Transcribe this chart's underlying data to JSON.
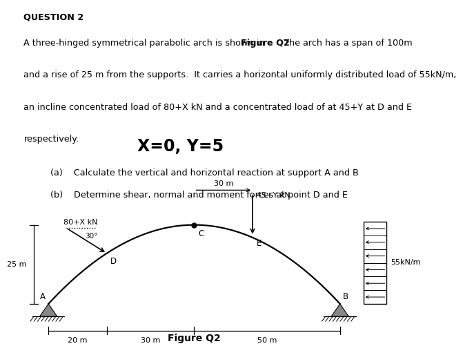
{
  "title": "QUESTION 2",
  "line1a": "A three-hinged symmetrical parabolic arch is shown in ",
  "line1b": "Figure Q2",
  "line1c": ". The arch has a span of 100m",
  "line2": "and a rise of 25 m from the supports.  It carries a horizontal uniformly distributed load of 55kN/m,",
  "line3": "an incline concentrated load of 80+X kN and a concentrated load of at 45+Y at D and E",
  "line4": "respectively.",
  "xy_label": "X=0, Y=5",
  "part_a": "(a)    Calculate the vertical and horizontal reaction at support A and B",
  "part_b": "(b)    Determine shear, normal and moment forces at point D and E",
  "figure_label": "Figure Q2",
  "bg_color": "#ffffff",
  "text_color": "#000000",
  "label_A": "A",
  "label_B": "B",
  "label_C": "C",
  "label_D": "D",
  "label_E": "E",
  "load_80X": "80+X kN",
  "load_45Y": "45+Y kN",
  "load_55": "55kN/m",
  "angle_label": "30°",
  "dim_20": "20 m",
  "dim_30": "30 m",
  "dim_50": "50 m",
  "dim_25": "25 m",
  "dim_30m_top": "30 m"
}
